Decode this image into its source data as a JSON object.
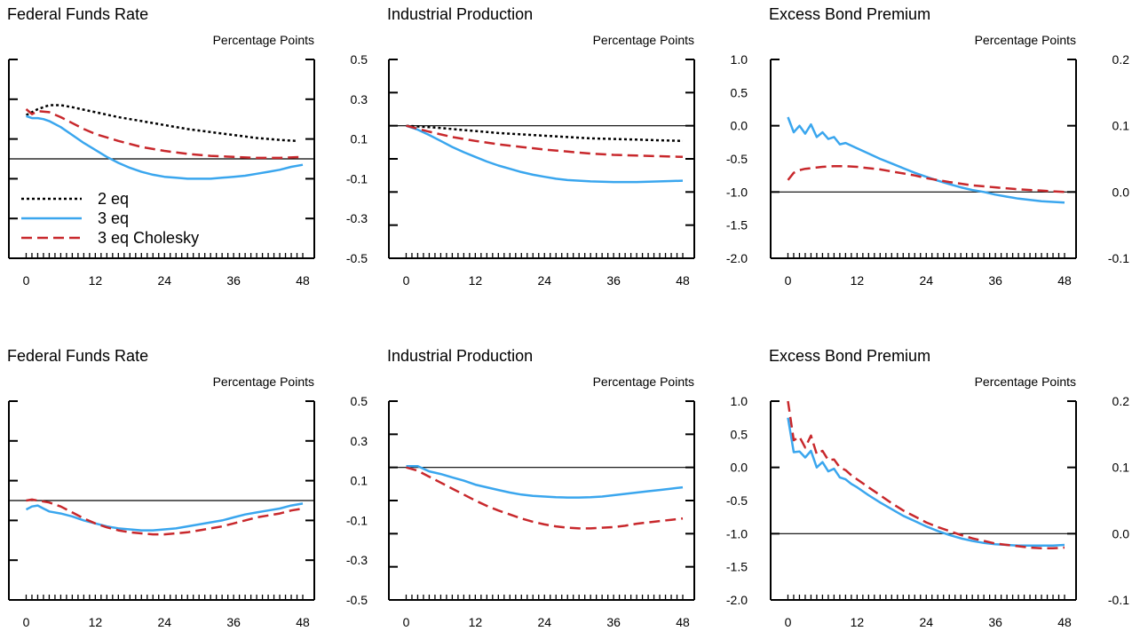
{
  "colors": {
    "2 eq": "#000000",
    "3 eq": "#3aa6ee",
    "3 eq Cholesky": "#c8282c"
  },
  "legend": {
    "panel": 0,
    "placement": "bottom-left",
    "entries": [
      "2 eq",
      "3 eq",
      "3 eq Cholesky"
    ]
  },
  "chart_data": [
    {
      "type": "line",
      "title": "Federal Funds Rate",
      "unit_label": "Percentage Points",
      "xticks": [
        0,
        12,
        24,
        36,
        48
      ],
      "yticks": [
        "0.5",
        "0.3",
        "0.1",
        "-0.1",
        "-0.3",
        "-0.5"
      ],
      "xlim": [
        -3,
        50
      ],
      "ylim": [
        -0.5,
        0.5
      ],
      "zero_line": 0,
      "series": [
        {
          "name": "2 eq",
          "style": "dotted",
          "x": [
            0,
            2,
            4,
            6,
            8,
            12,
            16,
            20,
            24,
            28,
            32,
            36,
            40,
            44,
            47
          ],
          "y": [
            0.22,
            0.25,
            0.27,
            0.27,
            0.26,
            0.235,
            0.21,
            0.19,
            0.17,
            0.15,
            0.135,
            0.12,
            0.105,
            0.095,
            0.09
          ]
        },
        {
          "name": "3 eq",
          "style": "solid",
          "x": [
            0,
            1,
            2,
            3,
            4,
            6,
            8,
            10,
            12,
            14,
            16,
            18,
            20,
            22,
            24,
            26,
            28,
            30,
            32,
            34,
            36,
            38,
            40,
            42,
            44,
            46,
            48
          ],
          "y": [
            0.215,
            0.205,
            0.205,
            0.2,
            0.19,
            0.16,
            0.12,
            0.08,
            0.045,
            0.01,
            -0.02,
            -0.045,
            -0.065,
            -0.08,
            -0.09,
            -0.095,
            -0.1,
            -0.1,
            -0.1,
            -0.095,
            -0.09,
            -0.085,
            -0.075,
            -0.065,
            -0.055,
            -0.04,
            -0.03
          ]
        },
        {
          "name": "3 eq Cholesky",
          "style": "dashed",
          "x": [
            0,
            1,
            2,
            4,
            6,
            8,
            10,
            12,
            16,
            20,
            24,
            28,
            32,
            36,
            40,
            44,
            48
          ],
          "y": [
            0.25,
            0.225,
            0.24,
            0.235,
            0.21,
            0.18,
            0.15,
            0.125,
            0.09,
            0.06,
            0.04,
            0.025,
            0.015,
            0.01,
            0.005,
            0.005,
            0.01
          ]
        }
      ]
    },
    {
      "type": "line",
      "title": "Industrial Production",
      "unit_label": "Percentage Points",
      "xticks": [
        0,
        12,
        24,
        36,
        48
      ],
      "yticks": [
        "1.0",
        "0.5",
        "0.0",
        "-0.5",
        "-1.0",
        "-1.5",
        "-2.0"
      ],
      "xlim": [
        -3,
        50
      ],
      "ylim": [
        -2.0,
        1.0
      ],
      "zero_line": 0,
      "series": [
        {
          "name": "2 eq",
          "style": "dotted",
          "x": [
            0,
            4,
            8,
            12,
            16,
            20,
            24,
            28,
            32,
            36,
            40,
            44,
            48
          ],
          "y": [
            0.0,
            -0.02,
            -0.05,
            -0.08,
            -0.11,
            -0.13,
            -0.15,
            -0.17,
            -0.19,
            -0.2,
            -0.21,
            -0.22,
            -0.23
          ]
        },
        {
          "name": "3 eq",
          "style": "solid",
          "x": [
            0,
            2,
            4,
            6,
            8,
            10,
            12,
            14,
            16,
            18,
            20,
            22,
            24,
            26,
            28,
            30,
            32,
            34,
            36,
            38,
            40,
            42,
            44,
            46,
            48
          ],
          "y": [
            0.0,
            -0.06,
            -0.14,
            -0.23,
            -0.32,
            -0.4,
            -0.47,
            -0.54,
            -0.6,
            -0.65,
            -0.7,
            -0.74,
            -0.77,
            -0.8,
            -0.82,
            -0.83,
            -0.84,
            -0.845,
            -0.85,
            -0.85,
            -0.85,
            -0.845,
            -0.84,
            -0.835,
            -0.83
          ]
        },
        {
          "name": "3 eq Cholesky",
          "style": "dashed",
          "x": [
            0,
            4,
            8,
            12,
            16,
            20,
            24,
            28,
            32,
            36,
            40,
            44,
            48
          ],
          "y": [
            0.0,
            -0.09,
            -0.17,
            -0.23,
            -0.28,
            -0.32,
            -0.36,
            -0.39,
            -0.42,
            -0.44,
            -0.45,
            -0.46,
            -0.47
          ]
        }
      ]
    },
    {
      "type": "line",
      "title": "Excess Bond Premium",
      "unit_label": "Percentage Points",
      "xticks": [
        0,
        12,
        24,
        36,
        48
      ],
      "yticks": [
        "0.2",
        "0.1",
        "0.0",
        "-0.1"
      ],
      "xlim": [
        -3,
        50
      ],
      "ylim": [
        -0.1,
        0.2
      ],
      "zero_line": 0,
      "series": [
        {
          "name": "3 eq",
          "style": "solid",
          "x": [
            0,
            1,
            2,
            3,
            4,
            5,
            6,
            7,
            8,
            9,
            10,
            11,
            12,
            14,
            16,
            18,
            20,
            22,
            24,
            26,
            28,
            30,
            32,
            34,
            36,
            38,
            40,
            42,
            44,
            46,
            48
          ],
          "y": [
            0.113,
            0.09,
            0.1,
            0.088,
            0.102,
            0.083,
            0.09,
            0.08,
            0.083,
            0.072,
            0.074,
            0.07,
            0.066,
            0.058,
            0.05,
            0.043,
            0.036,
            0.029,
            0.023,
            0.017,
            0.012,
            0.007,
            0.003,
            0.0,
            -0.004,
            -0.007,
            -0.01,
            -0.012,
            -0.014,
            -0.015,
            -0.016
          ]
        },
        {
          "name": "3 eq Cholesky",
          "style": "dashed",
          "x": [
            0,
            1,
            2,
            3,
            4,
            6,
            8,
            10,
            12,
            14,
            16,
            18,
            20,
            22,
            24,
            28,
            32,
            36,
            40,
            44,
            48
          ],
          "y": [
            0.018,
            0.029,
            0.033,
            0.035,
            0.036,
            0.038,
            0.039,
            0.039,
            0.038,
            0.036,
            0.034,
            0.031,
            0.028,
            0.025,
            0.021,
            0.015,
            0.01,
            0.007,
            0.004,
            0.002,
            0.0
          ]
        }
      ]
    },
    {
      "type": "line",
      "title": "Federal Funds Rate",
      "unit_label": "Percentage Points",
      "xticks": [
        0,
        12,
        24,
        36,
        48
      ],
      "yticks": [
        "0.5",
        "0.3",
        "0.1",
        "-0.1",
        "-0.3",
        "-0.5"
      ],
      "xlim": [
        -3,
        50
      ],
      "ylim": [
        -0.5,
        0.5
      ],
      "zero_line": 0,
      "series": [
        {
          "name": "3 eq",
          "style": "solid",
          "x": [
            0,
            1,
            2,
            3,
            4,
            6,
            8,
            10,
            12,
            14,
            16,
            18,
            20,
            22,
            24,
            26,
            28,
            30,
            32,
            34,
            36,
            38,
            40,
            42,
            44,
            46,
            48
          ],
          "y": [
            -0.045,
            -0.03,
            -0.025,
            -0.04,
            -0.055,
            -0.065,
            -0.08,
            -0.1,
            -0.115,
            -0.13,
            -0.14,
            -0.145,
            -0.15,
            -0.15,
            -0.145,
            -0.14,
            -0.13,
            -0.12,
            -0.11,
            -0.1,
            -0.085,
            -0.07,
            -0.06,
            -0.05,
            -0.04,
            -0.025,
            -0.015
          ]
        },
        {
          "name": "3 eq Cholesky",
          "style": "dashed",
          "x": [
            0,
            1,
            2,
            4,
            6,
            8,
            10,
            12,
            14,
            16,
            18,
            20,
            22,
            24,
            26,
            28,
            30,
            32,
            34,
            36,
            38,
            40,
            42,
            44,
            46,
            48
          ],
          "y": [
            0.0,
            0.005,
            0.0,
            -0.01,
            -0.03,
            -0.06,
            -0.09,
            -0.115,
            -0.135,
            -0.15,
            -0.16,
            -0.165,
            -0.17,
            -0.17,
            -0.165,
            -0.16,
            -0.15,
            -0.14,
            -0.13,
            -0.115,
            -0.1,
            -0.085,
            -0.075,
            -0.065,
            -0.05,
            -0.04
          ]
        }
      ]
    },
    {
      "type": "line",
      "title": "Industrial Production",
      "unit_label": "Percentage Points",
      "xticks": [
        0,
        12,
        24,
        36,
        48
      ],
      "yticks": [
        "1.0",
        "0.5",
        "0.0",
        "-0.5",
        "-1.0",
        "-1.5",
        "-2.0"
      ],
      "xlim": [
        -3,
        50
      ],
      "ylim": [
        -2.0,
        1.0
      ],
      "zero_line": 0,
      "series": [
        {
          "name": "3 eq",
          "style": "solid",
          "x": [
            0,
            2,
            4,
            6,
            8,
            10,
            12,
            14,
            16,
            18,
            20,
            22,
            24,
            26,
            28,
            30,
            32,
            34,
            36,
            38,
            40,
            42,
            44,
            46,
            48
          ],
          "y": [
            0.02,
            0.02,
            -0.06,
            -0.1,
            -0.15,
            -0.2,
            -0.26,
            -0.3,
            -0.34,
            -0.38,
            -0.41,
            -0.43,
            -0.44,
            -0.45,
            -0.455,
            -0.455,
            -0.45,
            -0.44,
            -0.42,
            -0.4,
            -0.38,
            -0.36,
            -0.34,
            -0.32,
            -0.3
          ]
        },
        {
          "name": "3 eq Cholesky",
          "style": "dashed",
          "x": [
            0,
            2,
            4,
            6,
            8,
            10,
            12,
            14,
            16,
            18,
            20,
            22,
            24,
            26,
            28,
            30,
            32,
            34,
            36,
            38,
            40,
            42,
            44,
            46,
            48
          ],
          "y": [
            0.0,
            -0.05,
            -0.14,
            -0.23,
            -0.32,
            -0.41,
            -0.5,
            -0.58,
            -0.65,
            -0.71,
            -0.77,
            -0.82,
            -0.86,
            -0.89,
            -0.91,
            -0.92,
            -0.92,
            -0.91,
            -0.9,
            -0.88,
            -0.85,
            -0.83,
            -0.81,
            -0.79,
            -0.77
          ]
        }
      ]
    },
    {
      "type": "line",
      "title": "Excess Bond Premium",
      "unit_label": "Percentage Points",
      "xticks": [
        0,
        12,
        24,
        36,
        48
      ],
      "yticks": [
        "0.2",
        "0.1",
        "0.0",
        "-0.1"
      ],
      "xlim": [
        -3,
        50
      ],
      "ylim": [
        -0.1,
        0.2
      ],
      "zero_line": 0,
      "series": [
        {
          "name": "3 eq",
          "style": "solid",
          "x": [
            0,
            1,
            2,
            3,
            4,
            5,
            6,
            7,
            8,
            9,
            10,
            11,
            12,
            14,
            16,
            18,
            20,
            22,
            24,
            26,
            28,
            30,
            32,
            34,
            36,
            38,
            40,
            42,
            44,
            46,
            48
          ],
          "y": [
            0.175,
            0.123,
            0.124,
            0.115,
            0.125,
            0.1,
            0.108,
            0.094,
            0.098,
            0.085,
            0.082,
            0.075,
            0.07,
            0.058,
            0.047,
            0.037,
            0.027,
            0.019,
            0.011,
            0.004,
            -0.002,
            -0.007,
            -0.011,
            -0.014,
            -0.016,
            -0.017,
            -0.018,
            -0.018,
            -0.018,
            -0.018,
            -0.017
          ]
        },
        {
          "name": "3 eq Cholesky",
          "style": "dashed",
          "x": [
            0,
            1,
            2,
            3,
            4,
            5,
            6,
            7,
            8,
            9,
            10,
            11,
            12,
            14,
            16,
            18,
            20,
            22,
            24,
            26,
            28,
            30,
            32,
            34,
            36,
            38,
            40,
            42,
            44,
            46,
            48
          ],
          "y": [
            0.2,
            0.141,
            0.146,
            0.13,
            0.148,
            0.12,
            0.125,
            0.111,
            0.112,
            0.1,
            0.096,
            0.088,
            0.082,
            0.07,
            0.058,
            0.046,
            0.035,
            0.026,
            0.017,
            0.01,
            0.004,
            -0.002,
            -0.007,
            -0.011,
            -0.015,
            -0.017,
            -0.019,
            -0.021,
            -0.022,
            -0.022,
            -0.021
          ]
        }
      ]
    }
  ]
}
